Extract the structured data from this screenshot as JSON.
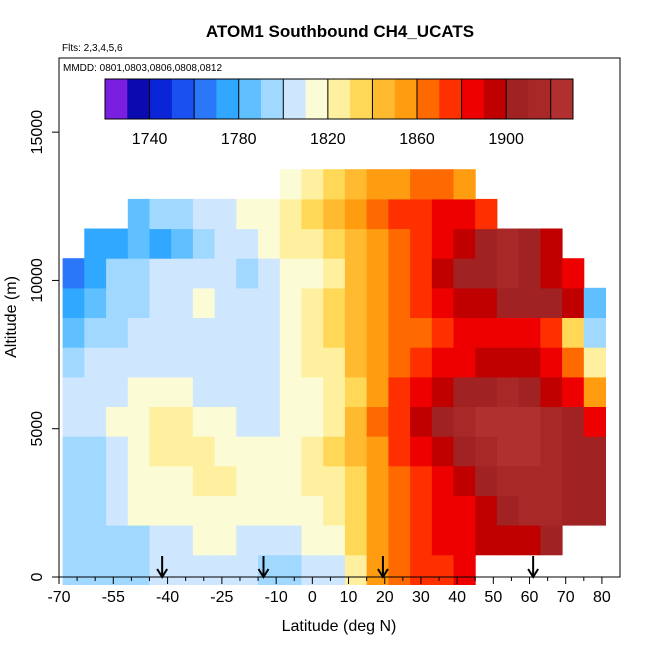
{
  "chart_data": {
    "type": "heatmap",
    "title": "ATOM1 Southbound CH4_UCATS",
    "subtitle_flights": "Flts: 2,3,4,5,6",
    "subtitle_dates": "MMDD: 0801,0803,0806,0808,0812",
    "xlabel": "Latitude (deg N)",
    "ylabel": "Altitude (m)",
    "xlim": [
      -70,
      85
    ],
    "ylim": [
      0,
      17500
    ],
    "x_ticks": [
      "-70",
      "-55",
      "-40",
      "-25",
      "-10",
      "0",
      "10",
      "20",
      "30",
      "40",
      "50",
      "60",
      "70",
      "80"
    ],
    "x_tick_values": [
      -70,
      -55,
      -40,
      -25,
      -10,
      0,
      10,
      20,
      30,
      40,
      50,
      60,
      70,
      80
    ],
    "y_ticks": [
      "0",
      "5000",
      "10000",
      "15000"
    ],
    "y_tick_values": [
      0,
      5000,
      10000,
      15000
    ],
    "colorbar": {
      "min": 1720,
      "max": 1930,
      "step": 10,
      "tick_values": [
        1740,
        1780,
        1820,
        1860,
        1900
      ],
      "tick_labels": [
        "1740",
        "1780",
        "1820",
        "1860",
        "1900"
      ],
      "colors": [
        "#7a1fe0",
        "#0a0ab0",
        "#0a24d8",
        "#1a50f0",
        "#2a78f8",
        "#30a8ff",
        "#60c0ff",
        "#a0d8ff",
        "#cfe6ff",
        "#fbfbd6",
        "#fff0a0",
        "#ffd858",
        "#ffba30",
        "#ff9c10",
        "#ff6a00",
        "#ff3000",
        "#ee0000",
        "#c00000",
        "#a02222",
        "#a82828",
        "#b03030"
      ]
    },
    "arrow_latitudes": [
      -41.5,
      -13.5,
      19.5,
      61
    ],
    "lat_centers": [
      -66,
      -60,
      -54,
      -48,
      -42,
      -36,
      -30,
      -24,
      -18,
      -12,
      -6,
      0,
      6,
      12,
      18,
      24,
      30,
      36,
      42,
      48,
      54,
      60,
      66,
      72,
      78
    ],
    "alt_centers": [
      250,
      1250,
      2250,
      3250,
      4250,
      5250,
      6250,
      7250,
      8250,
      9250,
      10250,
      11250,
      12250,
      13250
    ],
    "grid_values": [
      [
        1790,
        1790,
        1795,
        1795,
        1800,
        1800,
        1805,
        1805,
        1800,
        1795,
        1795,
        1800,
        1805,
        1825,
        1850,
        1860,
        1870,
        1875,
        1880,
        null,
        null,
        null,
        null,
        null,
        null
      ],
      [
        1795,
        1795,
        1790,
        1790,
        1800,
        1805,
        1810,
        1815,
        1805,
        1800,
        1805,
        1810,
        1815,
        1835,
        1855,
        1865,
        1870,
        1880,
        1885,
        1890,
        1895,
        1895,
        1900,
        null,
        null
      ],
      [
        1795,
        1790,
        1800,
        1810,
        1810,
        1810,
        1815,
        1815,
        1810,
        1810,
        1810,
        1815,
        1820,
        1830,
        1850,
        1860,
        1870,
        1880,
        1885,
        1895,
        1905,
        1910,
        1910,
        1905,
        1900
      ],
      [
        1790,
        1790,
        1800,
        1810,
        1815,
        1815,
        1820,
        1820,
        1815,
        1815,
        1815,
        1820,
        1825,
        1835,
        1850,
        1865,
        1875,
        1885,
        1895,
        1905,
        1910,
        1915,
        1910,
        1905,
        1900
      ],
      [
        1790,
        1795,
        1800,
        1810,
        1820,
        1825,
        1820,
        1815,
        1810,
        1810,
        1815,
        1820,
        1830,
        1840,
        1855,
        1870,
        1880,
        1890,
        1900,
        1910,
        1920,
        1920,
        1915,
        1905,
        1900
      ],
      [
        1800,
        1805,
        1810,
        1815,
        1820,
        1820,
        1815,
        1810,
        1805,
        1805,
        1810,
        1815,
        1825,
        1840,
        1860,
        1875,
        1890,
        1905,
        1915,
        1925,
        1925,
        1920,
        1915,
        1905,
        1880
      ],
      [
        1800,
        1800,
        1805,
        1810,
        1815,
        1810,
        1805,
        1805,
        1800,
        1805,
        1810,
        1815,
        1820,
        1835,
        1855,
        1870,
        1880,
        1890,
        1900,
        1905,
        1910,
        1905,
        1895,
        1880,
        1850
      ],
      [
        1795,
        1800,
        1800,
        1805,
        1805,
        1800,
        1800,
        1800,
        1800,
        1805,
        1815,
        1820,
        1825,
        1840,
        1855,
        1865,
        1875,
        1880,
        1885,
        1890,
        1895,
        1890,
        1880,
        1860,
        1820
      ],
      [
        1785,
        1790,
        1795,
        1800,
        1800,
        1800,
        1805,
        1805,
        1800,
        1805,
        1815,
        1820,
        1830,
        1840,
        1855,
        1860,
        1865,
        1875,
        1880,
        1885,
        1885,
        1880,
        1870,
        1830,
        1790
      ],
      [
        1770,
        1780,
        1790,
        1795,
        1800,
        1805,
        1810,
        1805,
        1800,
        1805,
        1815,
        1820,
        1830,
        1840,
        1850,
        1860,
        1870,
        1880,
        1890,
        1895,
        1900,
        1905,
        1900,
        1890,
        1780
      ],
      [
        1760,
        1775,
        1790,
        1795,
        1800,
        1805,
        1805,
        1800,
        1795,
        1800,
        1810,
        1815,
        1825,
        1840,
        1850,
        1860,
        1875,
        1890,
        1900,
        1905,
        1910,
        1905,
        1895,
        1880,
        null
      ],
      [
        null,
        1775,
        1770,
        1780,
        1770,
        1780,
        1795,
        1800,
        1805,
        1810,
        1820,
        1825,
        1835,
        1845,
        1855,
        1865,
        1875,
        1885,
        1895,
        1905,
        1910,
        1900,
        1890,
        null,
        null
      ],
      [
        null,
        null,
        null,
        1785,
        1790,
        1795,
        1800,
        1805,
        1810,
        1815,
        1820,
        1830,
        1840,
        1850,
        1860,
        1870,
        1875,
        1880,
        1880,
        1870,
        null,
        null,
        null,
        null,
        null
      ],
      [
        null,
        null,
        null,
        null,
        null,
        null,
        null,
        null,
        null,
        null,
        1815,
        1825,
        1830,
        1840,
        1850,
        1855,
        1860,
        1860,
        1855,
        null,
        null,
        null,
        null,
        null,
        null
      ]
    ]
  }
}
